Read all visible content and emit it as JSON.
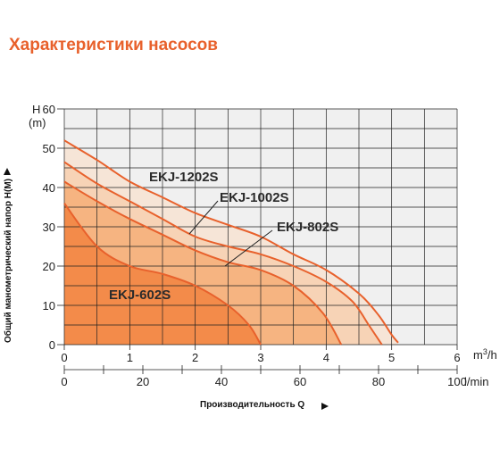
{
  "title": "Характеристики насосов",
  "chart_data": {
    "type": "line",
    "title": "Характеристики насосов",
    "xlabel": "Производительность Q",
    "ylabel": "Общий манометрический напор H(M)",
    "y_axis_head": "H",
    "y_axis_unit": "(m)",
    "x_unit_primary": "m³/h",
    "x_unit_secondary": "l/min",
    "xlim": [
      0,
      6
    ],
    "ylim": [
      0,
      60
    ],
    "x_ticks": [
      "0",
      "1",
      "2",
      "3",
      "4",
      "5",
      "6"
    ],
    "x_ticks_secondary": [
      "0",
      "20",
      "40",
      "60",
      "80",
      "100"
    ],
    "y_ticks": [
      "0",
      "10",
      "20",
      "30",
      "40",
      "50",
      "60"
    ],
    "grid": true,
    "series": [
      {
        "name": "EKJ-602S",
        "points": [
          [
            0,
            36
          ],
          [
            0.5,
            25
          ],
          [
            1.0,
            20
          ],
          [
            1.5,
            18
          ],
          [
            2.0,
            15
          ],
          [
            2.5,
            10
          ],
          [
            2.82,
            5
          ],
          [
            3.0,
            0
          ]
        ]
      },
      {
        "name": "EKJ-802S",
        "points": [
          [
            0,
            41.5
          ],
          [
            0.5,
            36.5
          ],
          [
            1.0,
            32
          ],
          [
            1.5,
            28
          ],
          [
            2.0,
            24
          ],
          [
            2.5,
            21
          ],
          [
            3.0,
            19
          ],
          [
            3.5,
            15
          ],
          [
            3.95,
            8
          ],
          [
            4.23,
            0
          ]
        ]
      },
      {
        "name": "EKJ-1002S",
        "points": [
          [
            0,
            46.5
          ],
          [
            0.5,
            41
          ],
          [
            1.0,
            36.5
          ],
          [
            1.5,
            32
          ],
          [
            2.0,
            27.5
          ],
          [
            2.5,
            25
          ],
          [
            3.0,
            23
          ],
          [
            3.5,
            20
          ],
          [
            4.0,
            16
          ],
          [
            4.4,
            11
          ],
          [
            4.65,
            5
          ],
          [
            4.85,
            0
          ]
        ]
      },
      {
        "name": "EKJ-1202S",
        "points": [
          [
            0,
            52
          ],
          [
            0.5,
            47
          ],
          [
            1.0,
            41.5
          ],
          [
            1.5,
            37.5
          ],
          [
            2.0,
            33.5
          ],
          [
            2.5,
            30.5
          ],
          [
            3.0,
            27.5
          ],
          [
            3.5,
            23
          ],
          [
            4.0,
            19
          ],
          [
            4.5,
            13
          ],
          [
            4.8,
            7.5
          ],
          [
            5.0,
            2.5
          ],
          [
            5.1,
            0.5
          ]
        ]
      }
    ],
    "fill_colors": [
      "#f06a1e",
      "#f59a55",
      "#f8c49a",
      "#fcdcc3"
    ],
    "line_color": "#e8612c",
    "grid_color": "#222222"
  },
  "labels": {
    "s1202": "EKJ-1202S",
    "s1002": "EKJ-1002S",
    "s802": "EKJ-802S",
    "s602": "EKJ-602S",
    "y_head": "H",
    "y_unit": "(m)",
    "x_unit": "m",
    "x_unit_exp": "3",
    "x_unit_tail": "/h",
    "x2_unit": "l/min",
    "xlabel": "Производительность Q",
    "ylabel": "Общий манометрический напор H(M)"
  }
}
